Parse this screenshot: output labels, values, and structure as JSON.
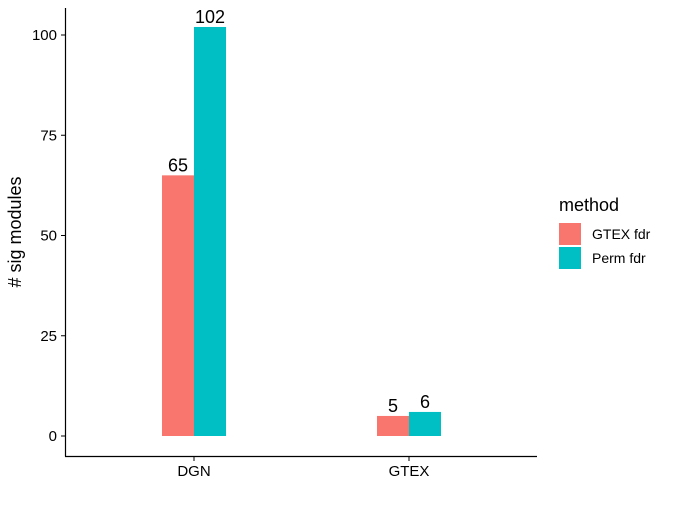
{
  "chart_data": {
    "type": "bar",
    "categories": [
      "DGN",
      "GTEX"
    ],
    "ylabel": "# sig modules",
    "xlabel": "",
    "ylim": [
      0,
      105
    ],
    "yticks": [
      0,
      25,
      50,
      75,
      100
    ],
    "grid": false,
    "legend": {
      "title": "method",
      "placement": "right"
    },
    "series": [
      {
        "name": "GTEX fdr",
        "color": "#F8766D",
        "values": [
          65,
          5
        ]
      },
      {
        "name": "Perm fdr",
        "color": "#00BFC4",
        "values": [
          102,
          6
        ]
      }
    ]
  }
}
